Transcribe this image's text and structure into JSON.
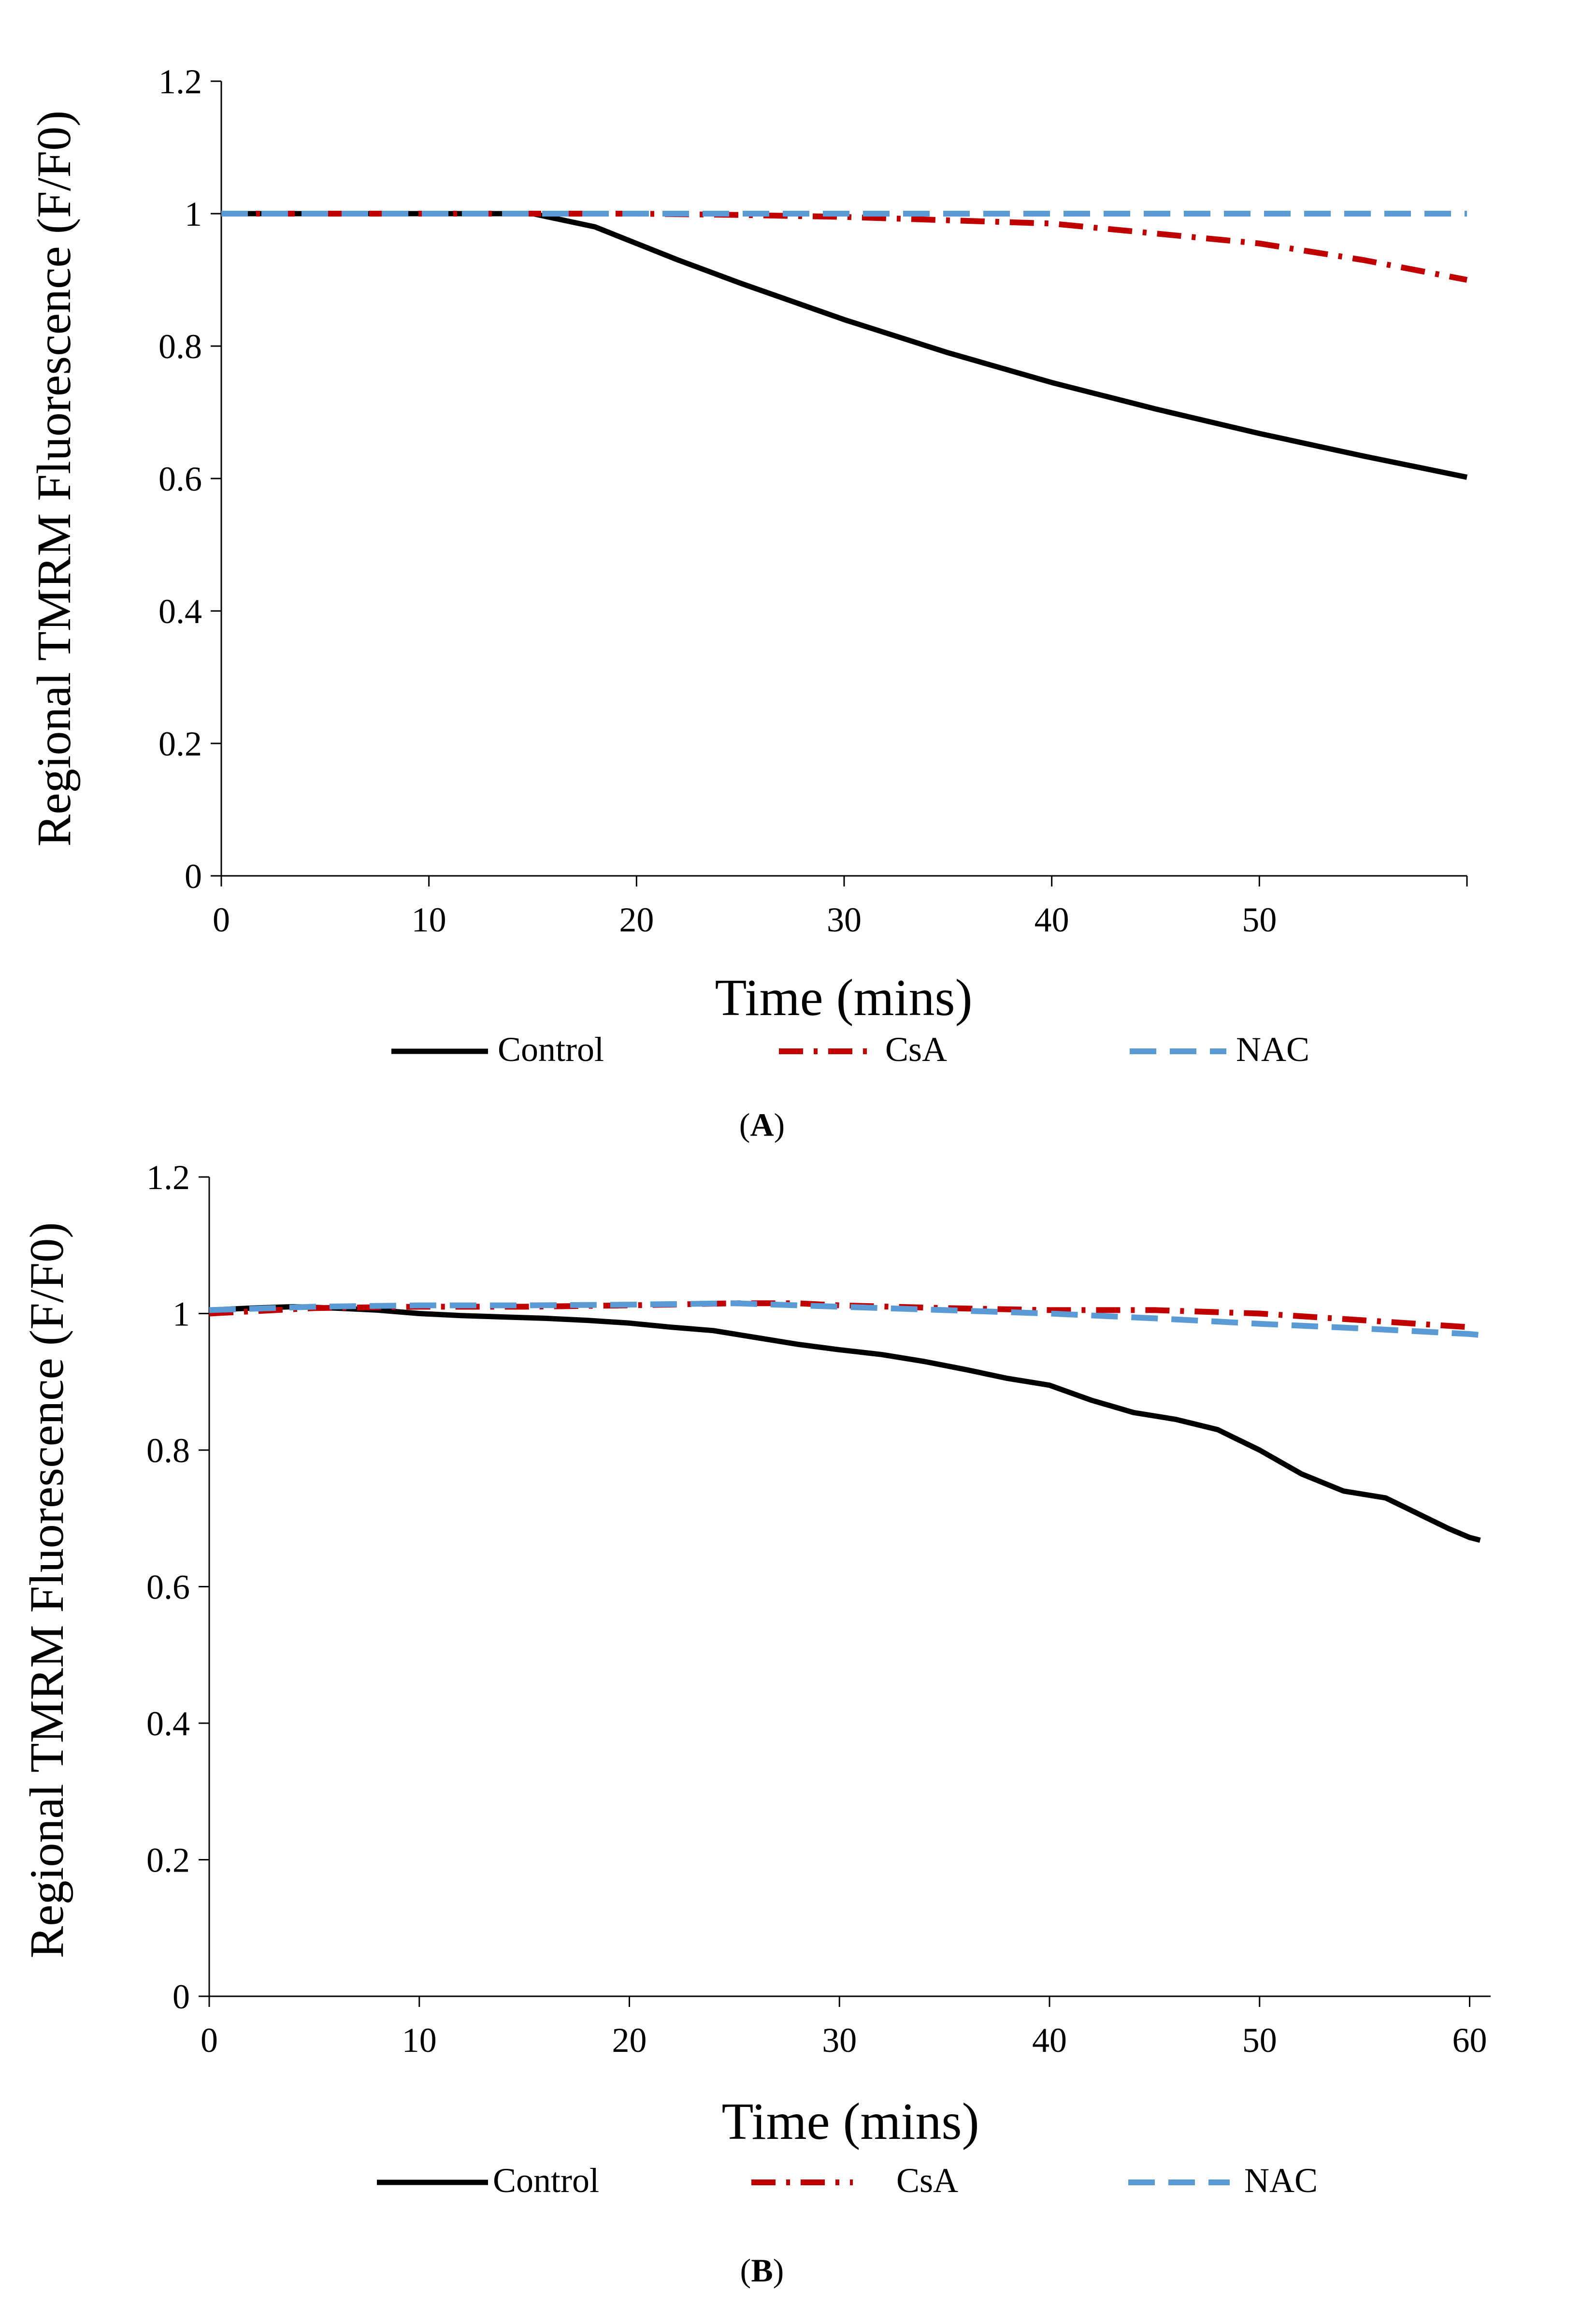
{
  "figure": {
    "panels": [
      {
        "id": "A",
        "caption_open": "(",
        "caption_letter": "A",
        "caption_close": ")"
      },
      {
        "id": "B",
        "caption_open": "(",
        "caption_letter": "B",
        "caption_close": ")"
      }
    ]
  },
  "chart_data": [
    {
      "type": "line",
      "panel": "A",
      "title": "",
      "xlabel": "Time (mins)",
      "ylabel": "Regional TMRM Fluorescence (F/F0)",
      "xlim": [
        0,
        60
      ],
      "ylim": [
        0,
        1.2
      ],
      "xticks": [
        0,
        10,
        20,
        30,
        40,
        50
      ],
      "yticks": [
        0,
        0.2,
        0.4,
        0.6,
        0.8,
        1,
        1.2
      ],
      "xtick_labels": [
        "0",
        "10",
        "20",
        "30",
        "40",
        "50"
      ],
      "ytick_labels": [
        "0",
        "0.2",
        "0.4",
        "0.6",
        "0.8",
        "1",
        "1.2"
      ],
      "grid": false,
      "legend_position": "bottom",
      "series": [
        {
          "name": "Control",
          "color": "#000000",
          "style": "solid",
          "x": [
            0,
            5,
            10,
            15,
            18,
            20,
            22,
            25,
            30,
            35,
            40,
            45,
            50,
            55,
            60
          ],
          "y": [
            1,
            1,
            1,
            1,
            0.98,
            0.955,
            0.93,
            0.895,
            0.84,
            0.79,
            0.745,
            0.705,
            0.668,
            0.634,
            0.602
          ]
        },
        {
          "name": "CsA",
          "color": "#C00000",
          "style": "dashdot",
          "x": [
            0,
            10,
            20,
            25,
            30,
            35,
            40,
            45,
            50,
            55,
            60
          ],
          "y": [
            1,
            1,
            1,
            0.998,
            0.995,
            0.99,
            0.985,
            0.97,
            0.955,
            0.93,
            0.9
          ]
        },
        {
          "name": "NAC",
          "color": "#5B9BD5",
          "style": "dashed",
          "x": [
            0,
            10,
            20,
            30,
            40,
            50,
            60
          ],
          "y": [
            1,
            1,
            1,
            1,
            1,
            1,
            1
          ]
        }
      ]
    },
    {
      "type": "line",
      "panel": "B",
      "title": "",
      "xlabel": "Time (mins)",
      "ylabel": "Regional TMRM Fluorescence (F/F0)",
      "xlim": [
        0,
        61
      ],
      "ylim": [
        0,
        1.2
      ],
      "xticks": [
        0,
        10,
        20,
        30,
        40,
        50,
        60
      ],
      "yticks": [
        0,
        0.2,
        0.4,
        0.6,
        0.8,
        1,
        1.2
      ],
      "xtick_labels": [
        "0",
        "10",
        "20",
        "30",
        "40",
        "50",
        "60"
      ],
      "ytick_labels": [
        "0",
        "0.2",
        "0.4",
        "0.6",
        "0.8",
        "1",
        "1.2"
      ],
      "grid": false,
      "legend_position": "bottom",
      "series": [
        {
          "name": "Control",
          "color": "#000000",
          "style": "solid",
          "x": [
            0,
            2,
            4,
            6,
            8,
            10,
            12,
            14,
            16,
            18,
            20,
            22,
            24,
            26,
            28,
            30,
            32,
            34,
            36,
            38,
            40,
            42,
            44,
            46,
            48,
            50,
            52,
            54,
            56,
            57,
            58,
            59,
            60,
            60.5
          ],
          "y": [
            1.005,
            1.008,
            1.01,
            1.008,
            1.005,
            1.0,
            0.997,
            0.995,
            0.993,
            0.99,
            0.986,
            0.98,
            0.975,
            0.965,
            0.955,
            0.947,
            0.94,
            0.93,
            0.918,
            0.905,
            0.895,
            0.873,
            0.855,
            0.845,
            0.83,
            0.8,
            0.765,
            0.74,
            0.73,
            0.715,
            0.7,
            0.685,
            0.672,
            0.668
          ]
        },
        {
          "name": "CsA",
          "color": "#C00000",
          "style": "dashdot",
          "x": [
            0,
            5,
            10,
            15,
            20,
            25,
            28,
            30,
            35,
            40,
            45,
            50,
            55,
            60
          ],
          "y": [
            1.0,
            1.008,
            1.01,
            1.01,
            1.012,
            1.015,
            1.015,
            1.012,
            1.008,
            1.005,
            1.005,
            1.0,
            0.99,
            0.98
          ]
        },
        {
          "name": "NAC",
          "color": "#5B9BD5",
          "style": "dashed",
          "x": [
            0,
            5,
            10,
            15,
            20,
            25,
            30,
            35,
            40,
            45,
            50,
            55,
            60,
            61
          ],
          "y": [
            1.005,
            1.01,
            1.012,
            1.012,
            1.013,
            1.015,
            1.01,
            1.005,
            1.0,
            0.993,
            0.985,
            0.978,
            0.97,
            0.967
          ]
        }
      ]
    }
  ]
}
